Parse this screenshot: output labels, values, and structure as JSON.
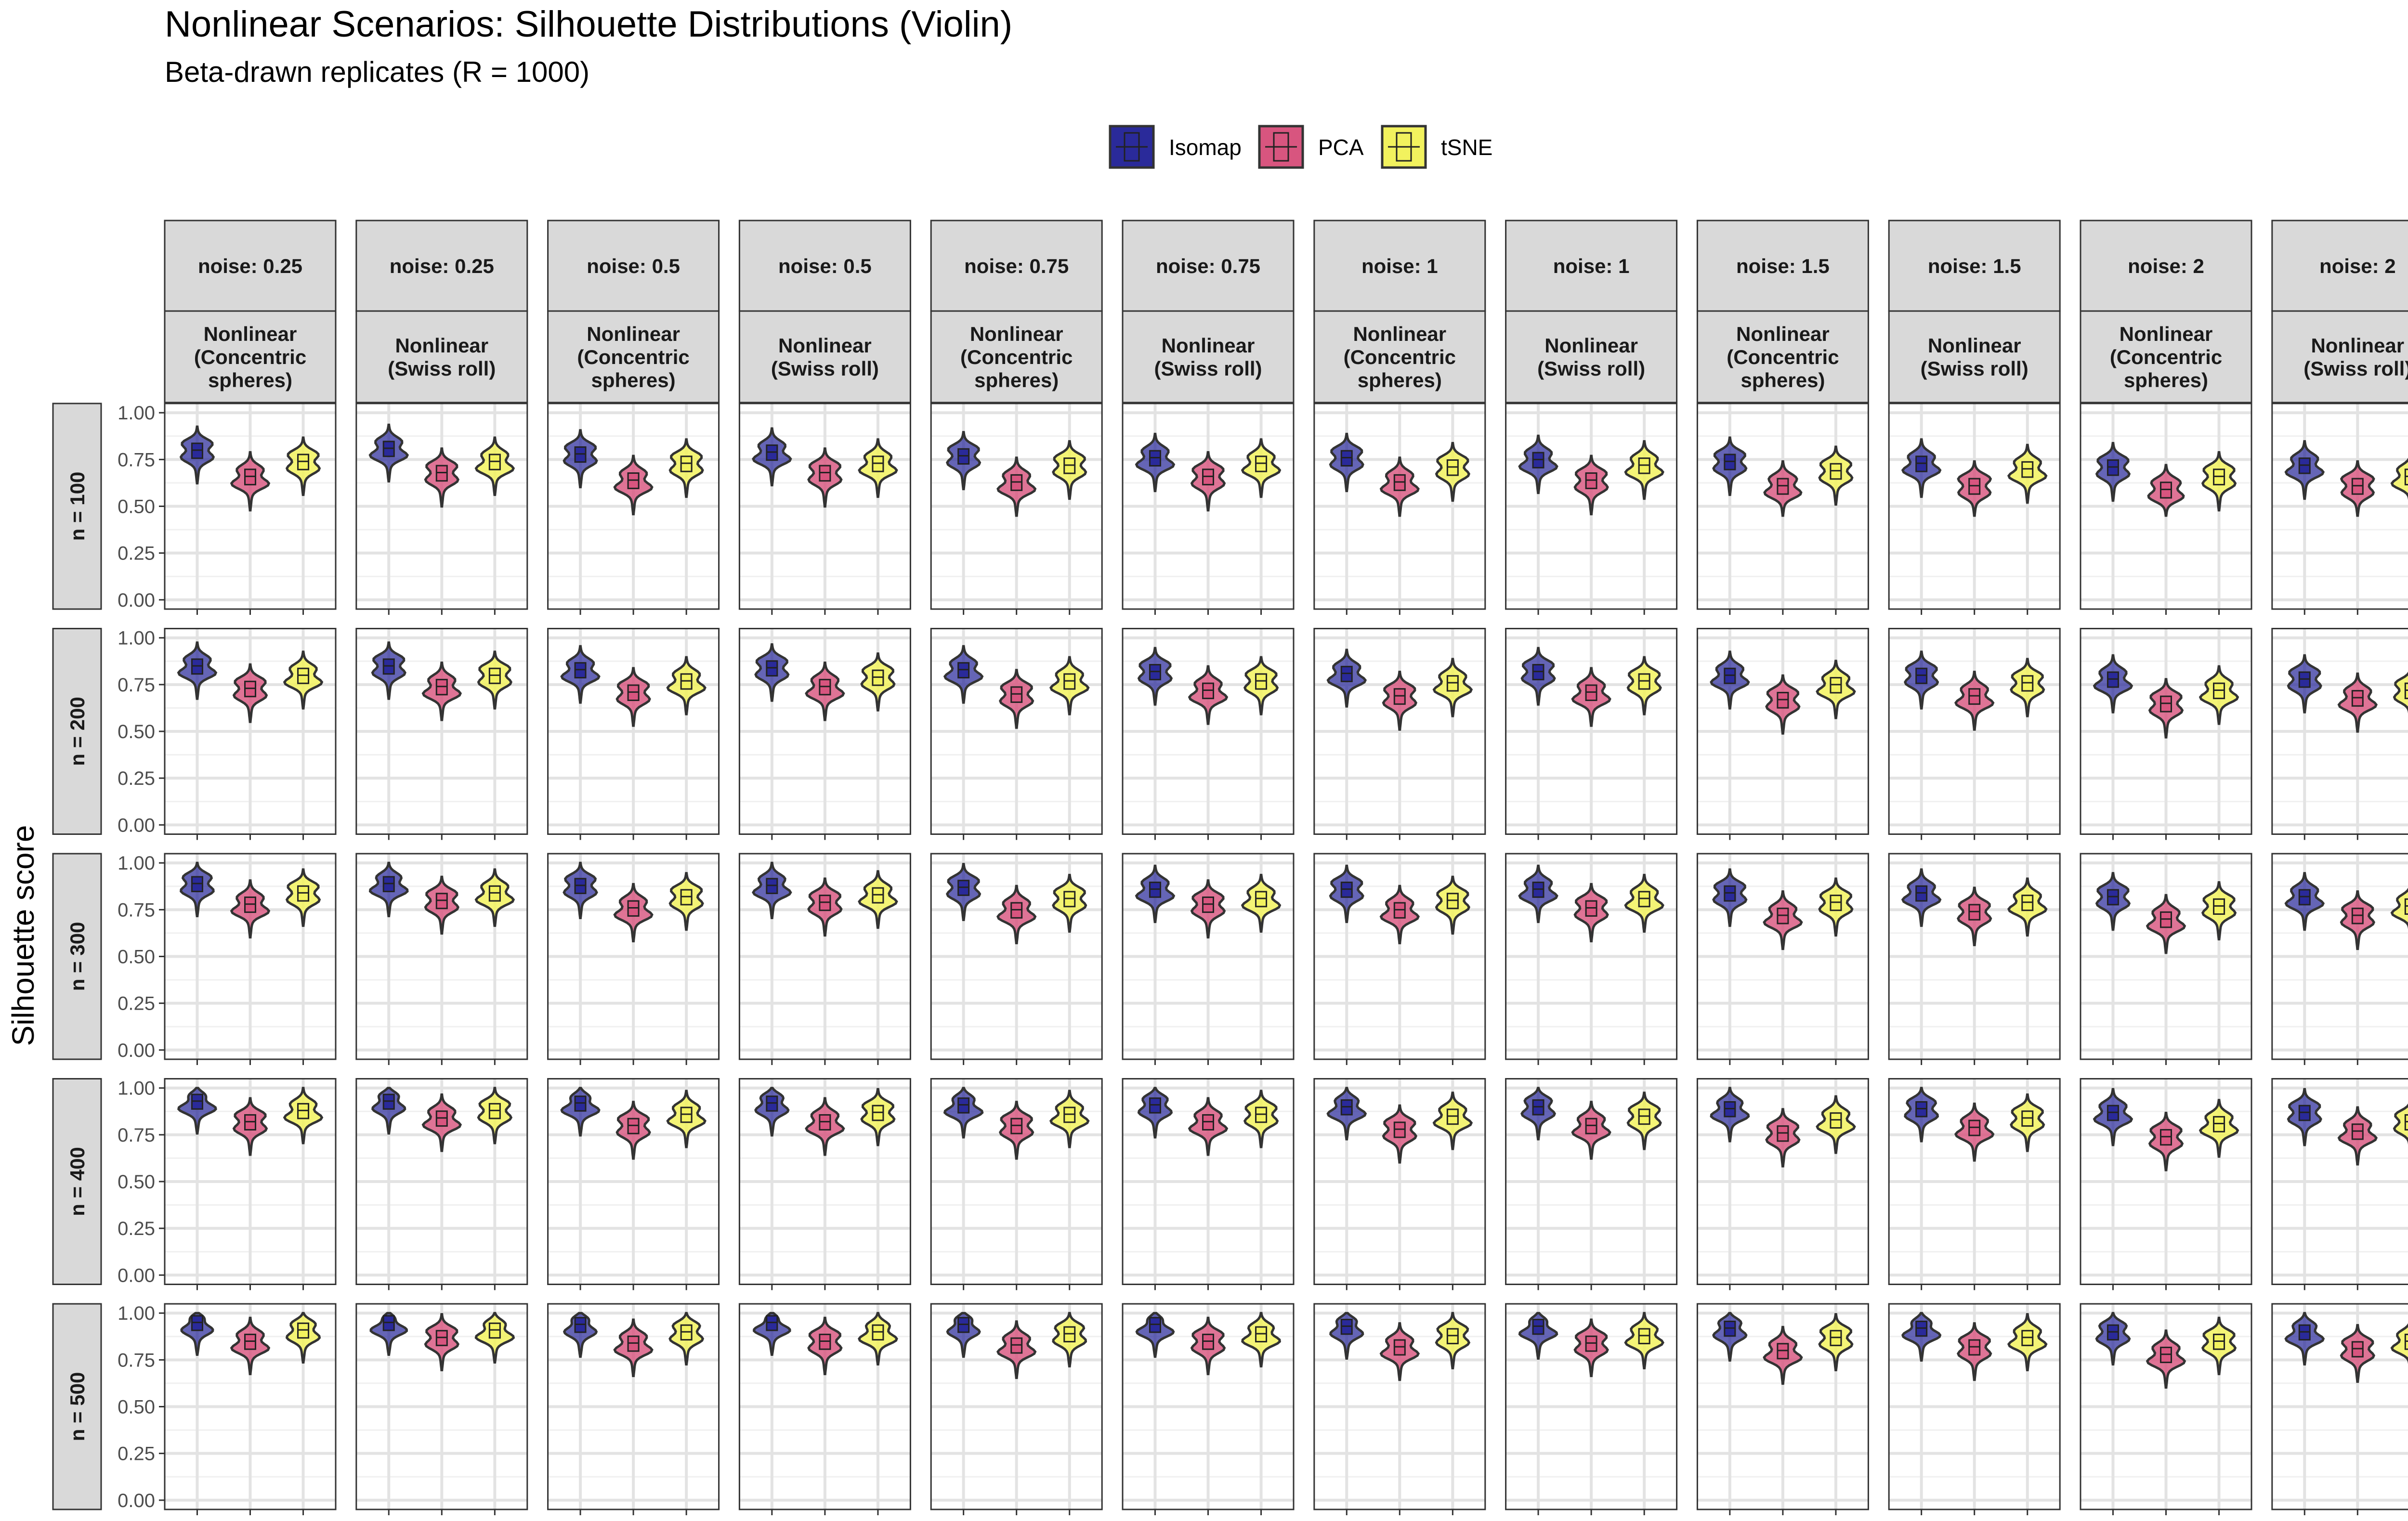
{
  "chart_data": {
    "type": "violin",
    "title": "Nonlinear Scenarios: Silhouette Distributions (Violin)",
    "subtitle": "Beta-drawn replicates (R = 1000)",
    "ylabel": "Silhouette score",
    "xlabel": "",
    "ylim": [
      0,
      1
    ],
    "yticks": [
      "0.00",
      "0.25",
      "0.50",
      "0.75",
      "1.00"
    ],
    "grid": true,
    "legend_position": "top",
    "legend": [
      {
        "name": "Isomap",
        "color": "#2a2a9a"
      },
      {
        "name": "PCA",
        "color": "#d8557f"
      },
      {
        "name": "tSNE",
        "color": "#f2f25e"
      }
    ],
    "columns": [
      {
        "noise": "noise: 0.25",
        "scenario": [
          "Nonlinear",
          "(Concentric",
          "spheres)"
        ]
      },
      {
        "noise": "noise: 0.25",
        "scenario": [
          "Nonlinear",
          "(Swiss roll)"
        ]
      },
      {
        "noise": "noise: 0.5",
        "scenario": [
          "Nonlinear",
          "(Concentric",
          "spheres)"
        ]
      },
      {
        "noise": "noise: 0.5",
        "scenario": [
          "Nonlinear",
          "(Swiss roll)"
        ]
      },
      {
        "noise": "noise: 0.75",
        "scenario": [
          "Nonlinear",
          "(Concentric",
          "spheres)"
        ]
      },
      {
        "noise": "noise: 0.75",
        "scenario": [
          "Nonlinear",
          "(Swiss roll)"
        ]
      },
      {
        "noise": "noise: 1",
        "scenario": [
          "Nonlinear",
          "(Concentric",
          "spheres)"
        ]
      },
      {
        "noise": "noise: 1",
        "scenario": [
          "Nonlinear",
          "(Swiss roll)"
        ]
      },
      {
        "noise": "noise: 1.5",
        "scenario": [
          "Nonlinear",
          "(Concentric",
          "spheres)"
        ]
      },
      {
        "noise": "noise: 1.5",
        "scenario": [
          "Nonlinear",
          "(Swiss roll)"
        ]
      },
      {
        "noise": "noise: 2",
        "scenario": [
          "Nonlinear",
          "(Concentric",
          "spheres)"
        ]
      },
      {
        "noise": "noise: 2",
        "scenario": [
          "Nonlinear",
          "(Swiss roll)"
        ]
      }
    ],
    "rows": [
      "n = 100",
      "n = 200",
      "n = 300",
      "n = 400",
      "n = 500"
    ],
    "methods": [
      "Isomap",
      "PCA",
      "tSNE"
    ],
    "medians": [
      [
        [
          0.8,
          0.66,
          0.74
        ],
        [
          0.81,
          0.68,
          0.74
        ],
        [
          0.78,
          0.64,
          0.73
        ],
        [
          0.79,
          0.68,
          0.73
        ],
        [
          0.77,
          0.63,
          0.72
        ],
        [
          0.76,
          0.66,
          0.73
        ],
        [
          0.76,
          0.63,
          0.71
        ],
        [
          0.75,
          0.64,
          0.72
        ],
        [
          0.74,
          0.61,
          0.69
        ],
        [
          0.73,
          0.61,
          0.7
        ],
        [
          0.71,
          0.59,
          0.66
        ],
        [
          0.72,
          0.61,
          0.66
        ]
      ],
      [
        [
          0.85,
          0.73,
          0.8
        ],
        [
          0.85,
          0.74,
          0.8
        ],
        [
          0.83,
          0.71,
          0.77
        ],
        [
          0.84,
          0.74,
          0.79
        ],
        [
          0.83,
          0.7,
          0.77
        ],
        [
          0.82,
          0.72,
          0.77
        ],
        [
          0.81,
          0.69,
          0.76
        ],
        [
          0.82,
          0.71,
          0.77
        ],
        [
          0.8,
          0.67,
          0.75
        ],
        [
          0.8,
          0.69,
          0.76
        ],
        [
          0.78,
          0.65,
          0.72
        ],
        [
          0.78,
          0.68,
          0.72
        ]
      ],
      [
        [
          0.89,
          0.78,
          0.84
        ],
        [
          0.89,
          0.8,
          0.84
        ],
        [
          0.88,
          0.76,
          0.82
        ],
        [
          0.88,
          0.79,
          0.83
        ],
        [
          0.87,
          0.75,
          0.81
        ],
        [
          0.86,
          0.78,
          0.81
        ],
        [
          0.86,
          0.75,
          0.8
        ],
        [
          0.86,
          0.76,
          0.81
        ],
        [
          0.84,
          0.72,
          0.79
        ],
        [
          0.84,
          0.74,
          0.79
        ],
        [
          0.82,
          0.7,
          0.77
        ],
        [
          0.82,
          0.72,
          0.77
        ]
      ],
      [
        [
          0.93,
          0.82,
          0.88
        ],
        [
          0.93,
          0.84,
          0.88
        ],
        [
          0.92,
          0.8,
          0.86
        ],
        [
          0.92,
          0.82,
          0.87
        ],
        [
          0.91,
          0.8,
          0.86
        ],
        [
          0.91,
          0.82,
          0.86
        ],
        [
          0.9,
          0.78,
          0.85
        ],
        [
          0.9,
          0.8,
          0.85
        ],
        [
          0.89,
          0.76,
          0.83
        ],
        [
          0.89,
          0.79,
          0.84
        ],
        [
          0.87,
          0.74,
          0.81
        ],
        [
          0.87,
          0.77,
          0.82
        ]
      ],
      [
        [
          0.95,
          0.85,
          0.91
        ],
        [
          0.95,
          0.87,
          0.91
        ],
        [
          0.94,
          0.84,
          0.9
        ],
        [
          0.95,
          0.85,
          0.9
        ],
        [
          0.94,
          0.83,
          0.89
        ],
        [
          0.94,
          0.85,
          0.89
        ],
        [
          0.93,
          0.82,
          0.88
        ],
        [
          0.93,
          0.84,
          0.88
        ],
        [
          0.92,
          0.8,
          0.87
        ],
        [
          0.92,
          0.82,
          0.87
        ],
        [
          0.9,
          0.78,
          0.85
        ],
        [
          0.9,
          0.81,
          0.85
        ]
      ]
    ]
  }
}
